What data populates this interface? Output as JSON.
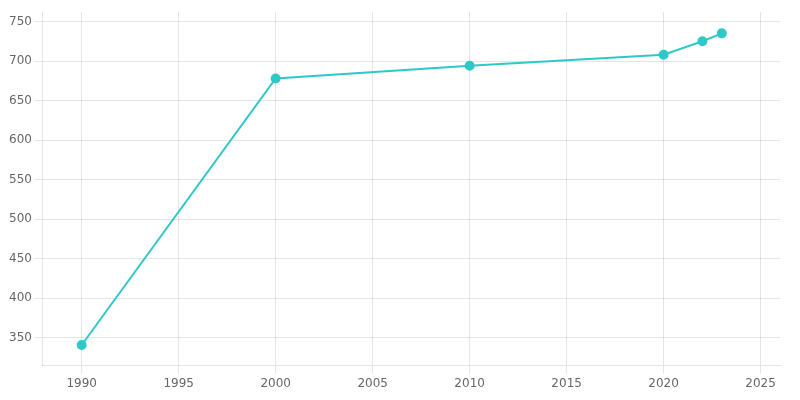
{
  "chart_data": {
    "type": "line",
    "x": [
      1990,
      2000,
      2010,
      2020,
      2022,
      2023
    ],
    "values": [
      341,
      678,
      694,
      708,
      725,
      735
    ],
    "color": "#2ec8c8",
    "marker": "circle",
    "xlim": [
      1988,
      2026
    ],
    "ylim": [
      315,
      762
    ],
    "xticks": [
      1990,
      1995,
      2000,
      2005,
      2010,
      2015,
      2020,
      2025
    ],
    "yticks": [
      350,
      400,
      450,
      500,
      550,
      600,
      650,
      700,
      750
    ],
    "grid": true
  }
}
